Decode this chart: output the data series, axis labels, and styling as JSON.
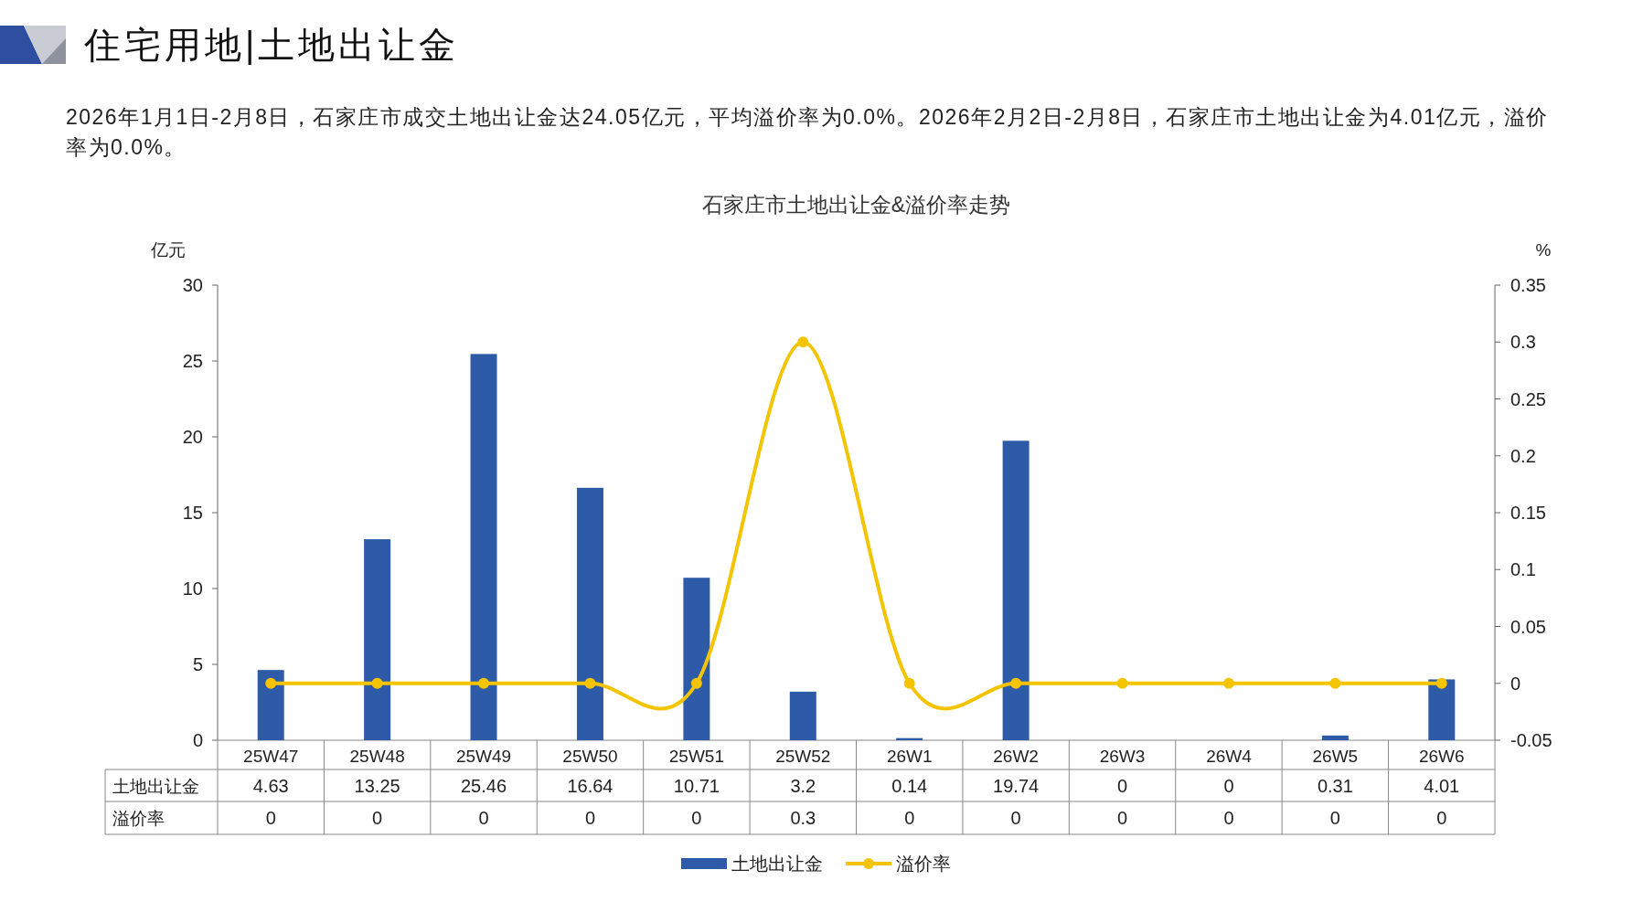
{
  "chart_data": {
    "type": "bar",
    "title": "石家庄市土地出让金&溢价率走势",
    "annotations": [
      "住宅用地|土地出让金",
      "2026年1月1日-2月8日，石家庄市成交土地出让金达24.05亿元，平均溢价率为0.0%。2026年2月2日-2月8日，石家庄市土地出让金为4.01亿元，溢价率为0.0%。"
    ],
    "ylabel": "亿元",
    "y2label": "%",
    "categories": [
      "25W47",
      "25W48",
      "25W49",
      "25W50",
      "25W51",
      "25W52",
      "26W1",
      "26W2",
      "26W3",
      "26W4",
      "26W5",
      "26W6"
    ],
    "series": [
      {
        "name": "土地出让金",
        "color": "#2E5BA8",
        "values": [
          4.63,
          13.25,
          25.46,
          16.64,
          10.71,
          3.2,
          0.14,
          19.74,
          0,
          0,
          0.31,
          4.01
        ]
      },
      {
        "name": "溢价率",
        "type": "line",
        "axis": "y2",
        "color": "#F5C400",
        "values": [
          0,
          0,
          0,
          0,
          0,
          0.3,
          0,
          0,
          0,
          0,
          0,
          0
        ]
      }
    ],
    "ylim": [
      0,
      30
    ],
    "yticks": [
      0,
      5,
      10,
      15,
      20,
      25,
      30
    ],
    "y2lim": [
      -0.05,
      0.35
    ],
    "y2ticks": [
      -0.05,
      0,
      0.05,
      0.1,
      0.15,
      0.2,
      0.25,
      0.3,
      0.35
    ],
    "marker": "circle",
    "data_labels": true,
    "legend": "bottom",
    "grid": false
  }
}
